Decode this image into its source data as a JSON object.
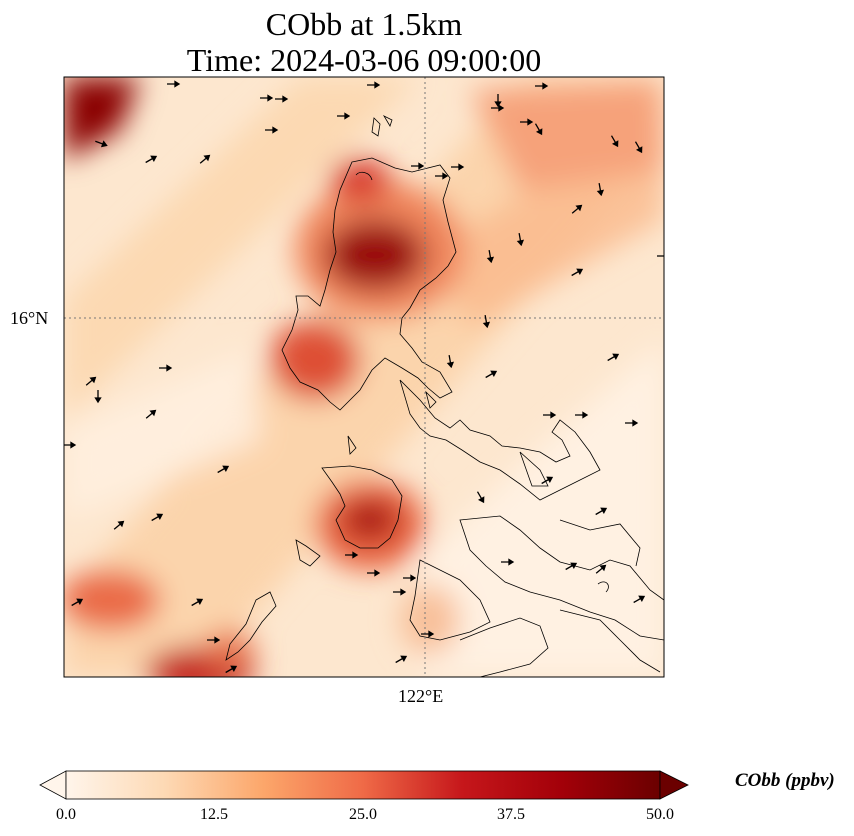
{
  "title": "CObb at 1.5km",
  "subtitle": "Time: 2024-03-06 09:00:00",
  "axes": {
    "lat_tick_label": "16°N",
    "lon_tick_label": "122°E"
  },
  "colorbar": {
    "label": "CObb (ppbv)",
    "ticks": [
      "0.0",
      "12.5",
      "25.0",
      "37.5",
      "50.0"
    ],
    "min": 0,
    "max": 50,
    "extend": "both",
    "colormap": [
      "#fff5eb",
      "#fdd9b4",
      "#fca66a",
      "#ef6a47",
      "#c6171b",
      "#a30009",
      "#6b0000"
    ]
  },
  "field": {
    "description_hotspots_ppbv": [
      {
        "name": "northwest corner plume",
        "value": 48
      },
      {
        "name": "northern Luzon",
        "value": 45
      },
      {
        "name": "central Luzon west",
        "value": 36
      },
      {
        "name": "Mindoro",
        "value": 40
      },
      {
        "name": "southwest corner",
        "value": 42
      }
    ]
  }
}
